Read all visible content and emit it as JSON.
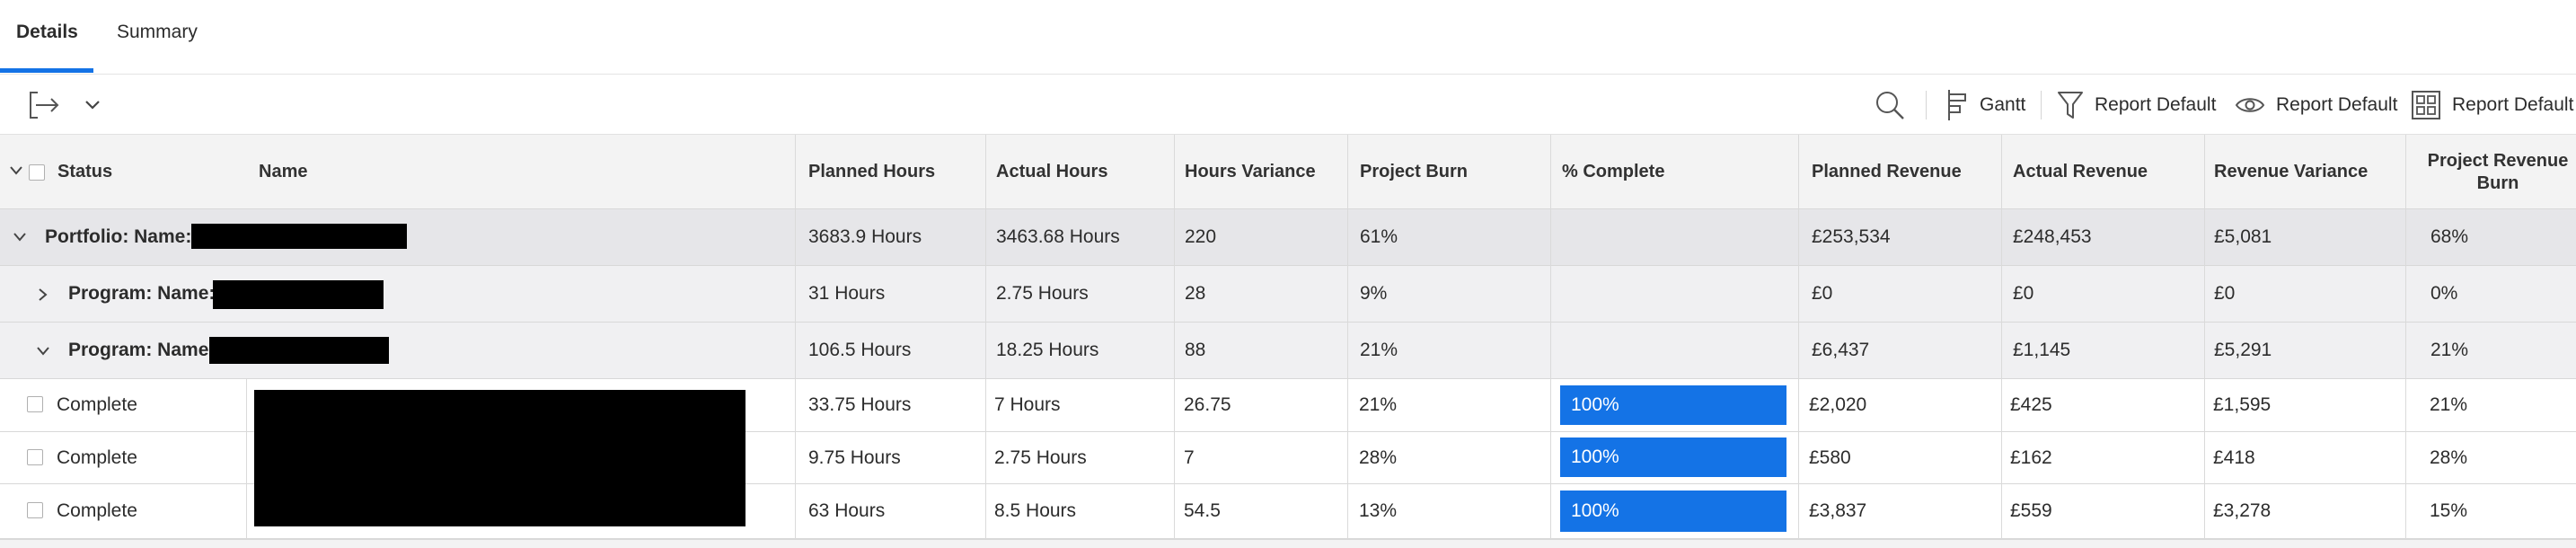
{
  "tabs": [
    {
      "label": "Details",
      "active": true
    },
    {
      "label": "Summary",
      "active": false
    }
  ],
  "toolbar": {
    "export_icon": "export-icon",
    "dropdown_icon": "chevron-down-icon",
    "search_icon": "search-icon",
    "gantt_label": "Gantt",
    "filter_label": "Report Default",
    "view_label": "Report Default",
    "grouping_label": "Report Default"
  },
  "columns": {
    "status": "Status",
    "name": "Name",
    "planned_hours": "Planned Hours",
    "actual_hours": "Actual Hours",
    "hours_variance": "Hours Variance",
    "project_burn": "Project Burn",
    "pct_complete": "% Complete",
    "planned_revenue": "Planned Revenue",
    "actual_revenue": "Actual Revenue",
    "revenue_variance": "Revenue Variance",
    "project_revenue_burn_1": "Project Revenue",
    "project_revenue_burn_2": "Burn"
  },
  "rows": [
    {
      "label": "Portfolio: Name:",
      "planned_hours": "3683.9 Hours",
      "actual_hours": "3463.68 Hours",
      "hours_variance": "220",
      "project_burn": "61%",
      "pct_complete": "",
      "planned_revenue": "£253,534",
      "actual_revenue": "£248,453",
      "revenue_variance": "£5,081",
      "revenue_burn": "68%"
    },
    {
      "label": "Program: Name:",
      "planned_hours": "31 Hours",
      "actual_hours": "2.75 Hours",
      "hours_variance": "28",
      "project_burn": "9%",
      "pct_complete": "",
      "planned_revenue": "£0",
      "actual_revenue": "£0",
      "revenue_variance": "£0",
      "revenue_burn": "0%"
    },
    {
      "label": "Program: Name:",
      "planned_hours": "106.5 Hours",
      "actual_hours": "18.25 Hours",
      "hours_variance": "88",
      "project_burn": "21%",
      "pct_complete": "",
      "planned_revenue": "£6,437",
      "actual_revenue": "£1,145",
      "revenue_variance": "£5,291",
      "revenue_burn": "21%"
    },
    {
      "status": "Complete",
      "planned_hours": "33.75 Hours",
      "actual_hours": "7 Hours",
      "hours_variance": "26.75",
      "project_burn": "21%",
      "pct_complete": "100%",
      "planned_revenue": "£2,020",
      "actual_revenue": "£425",
      "revenue_variance": "£1,595",
      "revenue_burn": "21%"
    },
    {
      "status": "Complete",
      "planned_hours": "9.75 Hours",
      "actual_hours": "2.75 Hours",
      "hours_variance": "7",
      "project_burn": "28%",
      "pct_complete": "100%",
      "planned_revenue": "£580",
      "actual_revenue": "£162",
      "revenue_variance": "£418",
      "revenue_burn": "28%"
    },
    {
      "status": "Complete",
      "planned_hours": "63 Hours",
      "actual_hours": "8.5 Hours",
      "hours_variance": "54.5",
      "project_burn": "13%",
      "pct_complete": "100%",
      "planned_revenue": "£3,837",
      "actual_revenue": "£559",
      "revenue_variance": "£3,278",
      "revenue_burn": "15%"
    }
  ],
  "colors": {
    "accent": "#1473e6",
    "header_bg": "#f3f3f3",
    "portfolio_bg": "#e6e6e9",
    "program_bg": "#f0f0f2",
    "redaction": "#000000"
  }
}
